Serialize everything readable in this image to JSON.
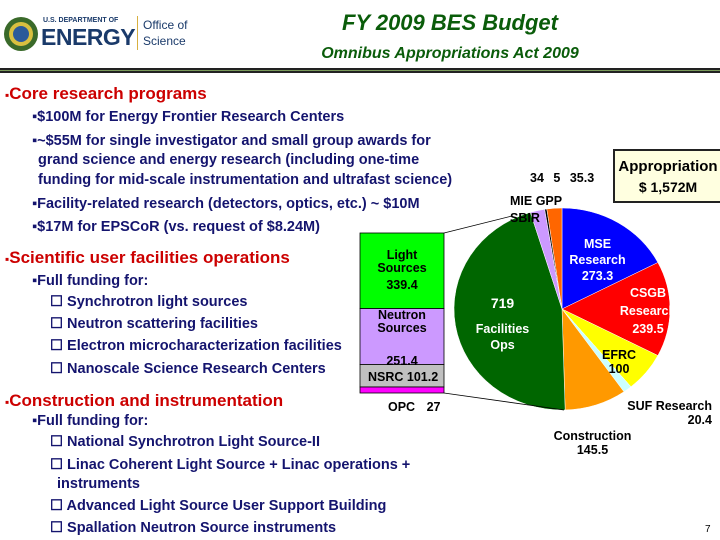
{
  "logo": {
    "dept": "U.S. DEPARTMENT OF",
    "energy": "ENERGY",
    "office": "Office of",
    "science": "Science"
  },
  "header": {
    "title": "FY 2009 BES Budget",
    "subtitle": "Omnibus Appropriations Act 2009"
  },
  "sections": {
    "core": {
      "title": "Core research programs",
      "items": [
        "▪$100M for Energy Frontier Research Centers",
        "▪~$55M for single investigator and small group awards for",
        "grand science and energy research (including one-time",
        "funding for mid-scale instrumentation and ultrafast science)",
        "▪Facility-related research (detectors, optics, etc.) ~ $10M",
        "▪$17M for EPSCoR (vs. request of $8.24M)"
      ]
    },
    "facilities": {
      "title": "Scientific user facilities operations",
      "lead": "▪Full funding for:",
      "items": [
        "☐ Synchrotron light sources",
        "☐ Neutron scattering facilities",
        "☐ Electron microcharacterization facilities",
        "☐ Nanoscale Science Research Centers"
      ]
    },
    "construction": {
      "title": "Construction and instrumentation",
      "lead": "▪Full funding for:",
      "items": [
        "☐ National Synchrotron Light Source-II",
        "☐ Linac Coherent Light Source + Linac operations +",
        "instruments",
        "☐ Advanced Light Source User Support Building",
        "☐ Spallation Neutron Source instruments"
      ]
    }
  },
  "page_number": "7",
  "chart_data": {
    "type": "pie",
    "title": "Appropriation",
    "total_label": "$ 1,572M",
    "slices": [
      {
        "name": "MSE Research",
        "value": 273.3,
        "color": "#0000ff"
      },
      {
        "name": "CSGB Research",
        "value": 239.5,
        "color": "#ff0000"
      },
      {
        "name": "EFRC",
        "value": 100,
        "color": "#ffff00"
      },
      {
        "name": "SUF Research",
        "value": 20.4,
        "color": "#ccffff"
      },
      {
        "name": "Construction",
        "value": 145.5,
        "color": "#ff9900"
      },
      {
        "name": "Facilities Ops",
        "value": 719,
        "color": "#006600"
      },
      {
        "name": "SBIR",
        "value": 34,
        "color": "#cc99ff"
      },
      {
        "name": "MIE",
        "value": 5,
        "color": "#000000"
      },
      {
        "name": "GPP",
        "value": 35.3,
        "color": "#ff6600"
      }
    ],
    "labels": {
      "mse": [
        "MSE",
        "Research",
        "273.3"
      ],
      "csgb": [
        "CSGB",
        "Research",
        "239.5"
      ],
      "efrc": [
        "EFRC",
        "100"
      ],
      "suf": [
        "SUF Research",
        "20.4"
      ],
      "constr": [
        "Construction",
        "145.5"
      ],
      "fac": [
        "719",
        "Facilities",
        "Ops"
      ],
      "top_values": [
        "34",
        "5",
        "35.3"
      ],
      "top_names": [
        "MIE GPP",
        "SBIR"
      ]
    },
    "breakdown": {
      "of": "Facilities Ops",
      "items": [
        {
          "name": "Light Sources",
          "value": 339.4,
          "text": [
            "Light",
            "Sources",
            "339.",
            "4"
          ],
          "color": "#00ff00"
        },
        {
          "name": "Neutron Sources",
          "value": 251.4,
          "text": [
            "Neutron",
            "Sources",
            "251.",
            "4"
          ],
          "color": "#cc99ff"
        },
        {
          "name": "NSRC",
          "value": 101.2,
          "text": [
            "NSRC",
            "101.",
            "2"
          ],
          "color": "#c0c0c0"
        },
        {
          "name": "OPC",
          "value": 27,
          "text": [
            "OPC",
            "27"
          ],
          "color": "#ff00ff"
        }
      ]
    }
  }
}
